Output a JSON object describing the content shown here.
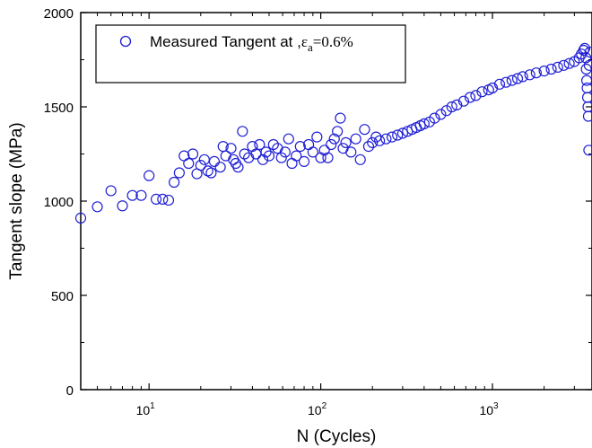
{
  "chart_data": {
    "type": "scatter",
    "xlabel": "N (Cycles)",
    "ylabel": "Tangent slope (MPa)",
    "xscale": "log",
    "xlim": [
      4,
      3800
    ],
    "ylim": [
      0,
      2000
    ],
    "x_ticks": [
      {
        "value": 10,
        "base": "10",
        "exp": "1"
      },
      {
        "value": 100,
        "base": "10",
        "exp": "2"
      },
      {
        "value": 1000,
        "base": "10",
        "exp": "3"
      }
    ],
    "y_ticks": [
      "0",
      "500",
      "1000",
      "1500",
      "2000"
    ],
    "legend": {
      "position": "top-left",
      "label_prefix": "Measured Tangent at ,",
      "symbol": "ε",
      "subscript": "a",
      "label_suffix": "=0.6%"
    },
    "marker": {
      "shape": "open-circle",
      "color": "#1f1fd6"
    },
    "series": [
      {
        "name": "Measured Tangent at ,εa=0.6%",
        "points": [
          [
            4,
            910
          ],
          [
            5,
            970
          ],
          [
            6,
            1055
          ],
          [
            7,
            975
          ],
          [
            8,
            1030
          ],
          [
            9,
            1030
          ],
          [
            10,
            1135
          ],
          [
            11,
            1010
          ],
          [
            12,
            1010
          ],
          [
            13,
            1005
          ],
          [
            14,
            1100
          ],
          [
            15,
            1150
          ],
          [
            16,
            1240
          ],
          [
            17,
            1200
          ],
          [
            18,
            1250
          ],
          [
            19,
            1145
          ],
          [
            20,
            1190
          ],
          [
            21,
            1220
          ],
          [
            22,
            1160
          ],
          [
            23,
            1150
          ],
          [
            24,
            1210
          ],
          [
            26,
            1180
          ],
          [
            27,
            1290
          ],
          [
            28,
            1240
          ],
          [
            30,
            1280
          ],
          [
            31,
            1220
          ],
          [
            32,
            1200
          ],
          [
            33,
            1180
          ],
          [
            35,
            1370
          ],
          [
            36,
            1250
          ],
          [
            38,
            1230
          ],
          [
            40,
            1290
          ],
          [
            42,
            1250
          ],
          [
            44,
            1300
          ],
          [
            46,
            1220
          ],
          [
            48,
            1260
          ],
          [
            50,
            1240
          ],
          [
            53,
            1300
          ],
          [
            56,
            1280
          ],
          [
            59,
            1230
          ],
          [
            62,
            1260
          ],
          [
            65,
            1330
          ],
          [
            68,
            1200
          ],
          [
            72,
            1240
          ],
          [
            76,
            1290
          ],
          [
            80,
            1210
          ],
          [
            85,
            1300
          ],
          [
            90,
            1260
          ],
          [
            95,
            1340
          ],
          [
            100,
            1230
          ],
          [
            105,
            1270
          ],
          [
            110,
            1230
          ],
          [
            115,
            1300
          ],
          [
            120,
            1330
          ],
          [
            125,
            1370
          ],
          [
            130,
            1440
          ],
          [
            135,
            1280
          ],
          [
            140,
            1310
          ],
          [
            150,
            1260
          ],
          [
            160,
            1330
          ],
          [
            170,
            1220
          ],
          [
            180,
            1380
          ],
          [
            190,
            1290
          ],
          [
            200,
            1310
          ],
          [
            210,
            1340
          ],
          [
            220,
            1320
          ],
          [
            240,
            1330
          ],
          [
            260,
            1340
          ],
          [
            280,
            1350
          ],
          [
            300,
            1360
          ],
          [
            320,
            1370
          ],
          [
            340,
            1380
          ],
          [
            360,
            1390
          ],
          [
            380,
            1400
          ],
          [
            400,
            1410
          ],
          [
            430,
            1420
          ],
          [
            460,
            1440
          ],
          [
            500,
            1460
          ],
          [
            540,
            1480
          ],
          [
            580,
            1500
          ],
          [
            620,
            1510
          ],
          [
            680,
            1530
          ],
          [
            740,
            1550
          ],
          [
            800,
            1560
          ],
          [
            870,
            1580
          ],
          [
            950,
            1590
          ],
          [
            1000,
            1600
          ],
          [
            1100,
            1620
          ],
          [
            1200,
            1630
          ],
          [
            1300,
            1640
          ],
          [
            1400,
            1650
          ],
          [
            1500,
            1660
          ],
          [
            1650,
            1670
          ],
          [
            1800,
            1680
          ],
          [
            2000,
            1690
          ],
          [
            2200,
            1700
          ],
          [
            2400,
            1710
          ],
          [
            2600,
            1720
          ],
          [
            2800,
            1730
          ],
          [
            3000,
            1740
          ],
          [
            3200,
            1760
          ],
          [
            3300,
            1780
          ],
          [
            3400,
            1800
          ],
          [
            3450,
            1810
          ],
          [
            3500,
            1760
          ],
          [
            3520,
            1700
          ],
          [
            3540,
            1640
          ],
          [
            3560,
            1600
          ],
          [
            3580,
            1550
          ],
          [
            3600,
            1500
          ],
          [
            3620,
            1450
          ],
          [
            3640,
            1270
          ],
          [
            3660,
            1720
          ],
          [
            3700,
            1790
          ]
        ]
      }
    ]
  }
}
